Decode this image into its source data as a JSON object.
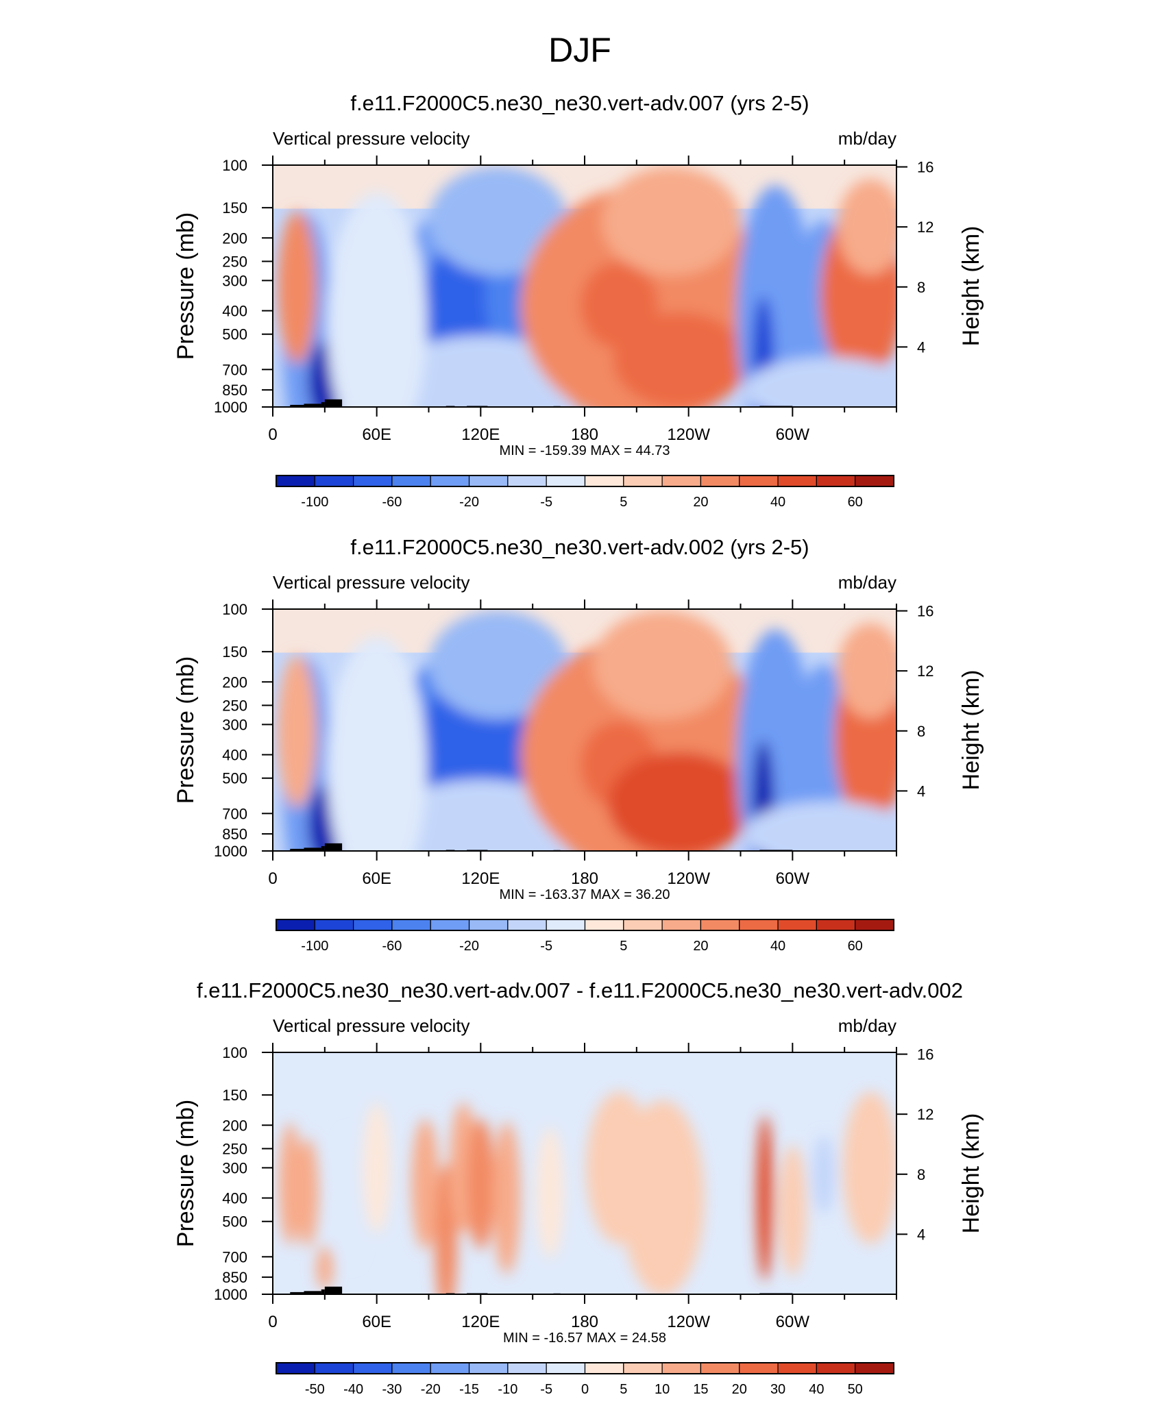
{
  "figure": {
    "title": "DJF"
  },
  "colors": {
    "blue_ramp": [
      "#03008c",
      "#0a1fb0",
      "#1c44d6",
      "#2f62e8",
      "#4c82f0",
      "#6f9cf4",
      "#98b9f6",
      "#c3d6fa",
      "#dfeafb"
    ],
    "red_ramp": [
      "#fde8da",
      "#fbcdb4",
      "#f7ab8a",
      "#f28a64",
      "#ec6a44",
      "#e04b2a",
      "#c8301c",
      "#a51a10",
      "#7a0a06"
    ],
    "terrain": "#000000",
    "frame": "#000000"
  },
  "chart_data": [
    {
      "type": "heatmap",
      "title": "f.e11.F2000C5.ne30_ne30.vert-adv.007 (yrs 2-5)",
      "left_label": "Vertical pressure velocity",
      "right_label": "mb/day",
      "ylabel": "Pressure (mb)",
      "y2label": "Height (km)",
      "xlim": [
        0,
        360
      ],
      "ylim": [
        1000,
        100
      ],
      "yscale": "log",
      "x_ticks": [
        {
          "v": 0,
          "l": "0"
        },
        {
          "v": 60,
          "l": "60E"
        },
        {
          "v": 120,
          "l": "120E"
        },
        {
          "v": 180,
          "l": "180"
        },
        {
          "v": 240,
          "l": "120W"
        },
        {
          "v": 300,
          "l": "60W"
        }
      ],
      "y_ticks": [
        {
          "v": 100,
          "l": "100"
        },
        {
          "v": 150,
          "l": "150"
        },
        {
          "v": 200,
          "l": "200"
        },
        {
          "v": 250,
          "l": "250"
        },
        {
          "v": 300,
          "l": "300"
        },
        {
          "v": 400,
          "l": "400"
        },
        {
          "v": 500,
          "l": "500"
        },
        {
          "v": 700,
          "l": "700"
        },
        {
          "v": 850,
          "l": "850"
        },
        {
          "v": 1000,
          "l": "1000"
        }
      ],
      "y2_ticks": [
        {
          "v": 16,
          "l": "16"
        },
        {
          "v": 12,
          "l": "12"
        },
        {
          "v": 8,
          "l": "8"
        },
        {
          "v": 4,
          "l": "4"
        }
      ],
      "minmax": "MIN = -159.39  MAX =  44.73",
      "colorbar": {
        "levels": [
          "-100",
          "-60",
          "-20",
          "-5",
          "5",
          "20",
          "40",
          "60"
        ],
        "level_positions": [
          1,
          3,
          5,
          7,
          9,
          11,
          13,
          15
        ],
        "n_boxes": 16
      },
      "field": [
        {
          "x": 20,
          "p": 500,
          "w": 9,
          "h": 0.55,
          "v": -45
        },
        {
          "x": 30,
          "p": 780,
          "w": 6,
          "h": 0.18,
          "v": -130
        },
        {
          "x": 14,
          "p": 320,
          "w": 7,
          "h": 0.35,
          "v": 18
        },
        {
          "x": 43,
          "p": 420,
          "w": 5,
          "h": 0.22,
          "v": 25
        },
        {
          "x": 46,
          "p": 900,
          "w": 3,
          "h": 0.07,
          "v": 44
        },
        {
          "x": 115,
          "p": 400,
          "w": 30,
          "h": 0.5,
          "v": -55
        },
        {
          "x": 100,
          "p": 380,
          "w": 8,
          "h": 0.25,
          "v": -80
        },
        {
          "x": 118,
          "p": 360,
          "w": 6,
          "h": 0.25,
          "v": -90
        },
        {
          "x": 145,
          "p": 340,
          "w": 14,
          "h": 0.35,
          "v": -75
        },
        {
          "x": 130,
          "p": 170,
          "w": 25,
          "h": 0.25,
          "v": -30
        },
        {
          "x": 120,
          "p": 800,
          "w": 35,
          "h": 0.22,
          "v": -15
        },
        {
          "x": 60,
          "p": 450,
          "w": 18,
          "h": 0.6,
          "v": -8
        },
        {
          "x": 215,
          "p": 380,
          "w": 45,
          "h": 0.55,
          "v": 18
        },
        {
          "x": 200,
          "p": 380,
          "w": 14,
          "h": 0.2,
          "v": 30
        },
        {
          "x": 235,
          "p": 640,
          "w": 24,
          "h": 0.22,
          "v": 30
        },
        {
          "x": 230,
          "p": 170,
          "w": 25,
          "h": 0.25,
          "v": 6
        },
        {
          "x": 290,
          "p": 420,
          "w": 14,
          "h": 0.6,
          "v": -40
        },
        {
          "x": 283,
          "p": 650,
          "w": 4,
          "h": 0.3,
          "v": -110
        },
        {
          "x": 318,
          "p": 350,
          "w": 10,
          "h": 0.35,
          "v": -55
        },
        {
          "x": 340,
          "p": 340,
          "w": 15,
          "h": 0.4,
          "v": 28
        },
        {
          "x": 345,
          "p": 180,
          "w": 12,
          "h": 0.22,
          "v": 8
        },
        {
          "x": 320,
          "p": 850,
          "w": 30,
          "h": 0.15,
          "v": -12
        }
      ],
      "terrain": [
        {
          "x0": 10,
          "x1": 18,
          "p": 980
        },
        {
          "x0": 18,
          "x1": 28,
          "p": 970
        },
        {
          "x0": 28,
          "x1": 30,
          "p": 955
        },
        {
          "x0": 30,
          "x1": 40,
          "p": 930
        },
        {
          "x0": 100,
          "x1": 105,
          "p": 990
        },
        {
          "x0": 112,
          "x1": 124,
          "p": 990
        },
        {
          "x0": 162,
          "x1": 166,
          "p": 992
        },
        {
          "x0": 281,
          "x1": 300,
          "p": 990
        }
      ]
    },
    {
      "type": "heatmap",
      "title": "f.e11.F2000C5.ne30_ne30.vert-adv.002 (yrs 2-5)",
      "left_label": "Vertical pressure velocity",
      "right_label": "mb/day",
      "ylabel": "Pressure (mb)",
      "y2label": "Height (km)",
      "xlim": [
        0,
        360
      ],
      "ylim": [
        1000,
        100
      ],
      "yscale": "log",
      "x_ticks": [
        {
          "v": 0,
          "l": "0"
        },
        {
          "v": 60,
          "l": "60E"
        },
        {
          "v": 120,
          "l": "120E"
        },
        {
          "v": 180,
          "l": "180"
        },
        {
          "v": 240,
          "l": "120W"
        },
        {
          "v": 300,
          "l": "60W"
        }
      ],
      "y_ticks": [
        {
          "v": 100,
          "l": "100"
        },
        {
          "v": 150,
          "l": "150"
        },
        {
          "v": 200,
          "l": "200"
        },
        {
          "v": 250,
          "l": "250"
        },
        {
          "v": 300,
          "l": "300"
        },
        {
          "v": 400,
          "l": "400"
        },
        {
          "v": 500,
          "l": "500"
        },
        {
          "v": 700,
          "l": "700"
        },
        {
          "v": 850,
          "l": "850"
        },
        {
          "v": 1000,
          "l": "1000"
        }
      ],
      "y2_ticks": [
        {
          "v": 16,
          "l": "16"
        },
        {
          "v": 12,
          "l": "12"
        },
        {
          "v": 8,
          "l": "8"
        },
        {
          "v": 4,
          "l": "4"
        }
      ],
      "minmax": "MIN = -163.37  MAX =  36.20",
      "colorbar": {
        "levels": [
          "-100",
          "-60",
          "-20",
          "-5",
          "5",
          "20",
          "40",
          "60"
        ],
        "level_positions": [
          1,
          3,
          5,
          7,
          9,
          11,
          13,
          15
        ],
        "n_boxes": 16
      },
      "field": [
        {
          "x": 20,
          "p": 500,
          "w": 9,
          "h": 0.55,
          "v": -45
        },
        {
          "x": 30,
          "p": 780,
          "w": 6,
          "h": 0.18,
          "v": -130
        },
        {
          "x": 14,
          "p": 320,
          "w": 7,
          "h": 0.35,
          "v": 10
        },
        {
          "x": 43,
          "p": 420,
          "w": 5,
          "h": 0.22,
          "v": 20
        },
        {
          "x": 46,
          "p": 900,
          "w": 3,
          "h": 0.07,
          "v": 36
        },
        {
          "x": 115,
          "p": 420,
          "w": 30,
          "h": 0.52,
          "v": -60
        },
        {
          "x": 98,
          "p": 380,
          "w": 8,
          "h": 0.25,
          "v": -85
        },
        {
          "x": 115,
          "p": 380,
          "w": 8,
          "h": 0.3,
          "v": -95
        },
        {
          "x": 140,
          "p": 400,
          "w": 14,
          "h": 0.35,
          "v": -85
        },
        {
          "x": 130,
          "p": 170,
          "w": 25,
          "h": 0.25,
          "v": -30
        },
        {
          "x": 120,
          "p": 800,
          "w": 35,
          "h": 0.22,
          "v": -18
        },
        {
          "x": 60,
          "p": 450,
          "w": 18,
          "h": 0.6,
          "v": -8
        },
        {
          "x": 215,
          "p": 400,
          "w": 45,
          "h": 0.55,
          "v": 18
        },
        {
          "x": 200,
          "p": 440,
          "w": 14,
          "h": 0.2,
          "v": 28
        },
        {
          "x": 235,
          "p": 640,
          "w": 26,
          "h": 0.24,
          "v": 32
        },
        {
          "x": 225,
          "p": 170,
          "w": 25,
          "h": 0.25,
          "v": 7
        },
        {
          "x": 290,
          "p": 420,
          "w": 14,
          "h": 0.6,
          "v": -40
        },
        {
          "x": 283,
          "p": 650,
          "w": 4,
          "h": 0.3,
          "v": -120
        },
        {
          "x": 318,
          "p": 350,
          "w": 10,
          "h": 0.35,
          "v": -50
        },
        {
          "x": 345,
          "p": 340,
          "w": 13,
          "h": 0.4,
          "v": 25
        },
        {
          "x": 345,
          "p": 180,
          "w": 12,
          "h": 0.22,
          "v": 8
        },
        {
          "x": 320,
          "p": 850,
          "w": 30,
          "h": 0.15,
          "v": -12
        }
      ],
      "terrain": [
        {
          "x0": 10,
          "x1": 18,
          "p": 980
        },
        {
          "x0": 18,
          "x1": 28,
          "p": 970
        },
        {
          "x0": 28,
          "x1": 30,
          "p": 955
        },
        {
          "x0": 30,
          "x1": 40,
          "p": 930
        },
        {
          "x0": 100,
          "x1": 105,
          "p": 990
        },
        {
          "x0": 112,
          "x1": 124,
          "p": 990
        },
        {
          "x0": 162,
          "x1": 166,
          "p": 992
        },
        {
          "x0": 281,
          "x1": 300,
          "p": 990
        }
      ]
    },
    {
      "type": "heatmap",
      "title": "f.e11.F2000C5.ne30_ne30.vert-adv.007 - f.e11.F2000C5.ne30_ne30.vert-adv.002",
      "left_label": "Vertical pressure velocity",
      "right_label": "mb/day",
      "ylabel": "Pressure (mb)",
      "y2label": "Height (km)",
      "xlim": [
        0,
        360
      ],
      "ylim": [
        1000,
        100
      ],
      "yscale": "log",
      "x_ticks": [
        {
          "v": 0,
          "l": "0"
        },
        {
          "v": 60,
          "l": "60E"
        },
        {
          "v": 120,
          "l": "120E"
        },
        {
          "v": 180,
          "l": "180"
        },
        {
          "v": 240,
          "l": "120W"
        },
        {
          "v": 300,
          "l": "60W"
        }
      ],
      "y_ticks": [
        {
          "v": 100,
          "l": "100"
        },
        {
          "v": 150,
          "l": "150"
        },
        {
          "v": 200,
          "l": "200"
        },
        {
          "v": 250,
          "l": "250"
        },
        {
          "v": 300,
          "l": "300"
        },
        {
          "v": 400,
          "l": "400"
        },
        {
          "v": 500,
          "l": "500"
        },
        {
          "v": 700,
          "l": "700"
        },
        {
          "v": 850,
          "l": "850"
        },
        {
          "v": 1000,
          "l": "1000"
        }
      ],
      "y2_ticks": [
        {
          "v": 16,
          "l": "16"
        },
        {
          "v": 12,
          "l": "12"
        },
        {
          "v": 8,
          "l": "8"
        },
        {
          "v": 4,
          "l": "4"
        }
      ],
      "minmax": "MIN = -16.57  MAX =  24.58",
      "colorbar": {
        "levels": [
          "-50",
          "-40",
          "-30",
          "-20",
          "-15",
          "-10",
          "-5",
          "0",
          "5",
          "10",
          "15",
          "20",
          "30",
          "40",
          "50"
        ],
        "level_positions": [
          1,
          2,
          3,
          4,
          5,
          6,
          7,
          8,
          9,
          10,
          11,
          12,
          13,
          14,
          15
        ],
        "n_boxes": 16
      },
      "field": [
        {
          "x": 10,
          "p": 350,
          "w": 4,
          "h": 0.28,
          "v": 7
        },
        {
          "x": 20,
          "p": 380,
          "w": 4,
          "h": 0.25,
          "v": 8
        },
        {
          "x": 30,
          "p": 780,
          "w": 3,
          "h": 0.1,
          "v": 8
        },
        {
          "x": 45,
          "p": 400,
          "w": 5,
          "h": 0.3,
          "v": -6
        },
        {
          "x": 60,
          "p": 300,
          "w": 5,
          "h": 0.3,
          "v": -4
        },
        {
          "x": 88,
          "p": 350,
          "w": 5,
          "h": 0.3,
          "v": 6
        },
        {
          "x": 100,
          "p": 600,
          "w": 4,
          "h": 0.35,
          "v": 12
        },
        {
          "x": 110,
          "p": 300,
          "w": 5,
          "h": 0.3,
          "v": 10
        },
        {
          "x": 120,
          "p": 350,
          "w": 5,
          "h": 0.3,
          "v": 12
        },
        {
          "x": 135,
          "p": 400,
          "w": 5,
          "h": 0.35,
          "v": 8
        },
        {
          "x": 160,
          "p": 380,
          "w": 5,
          "h": 0.3,
          "v": -4
        },
        {
          "x": 200,
          "p": 300,
          "w": 12,
          "h": 0.35,
          "v": 3
        },
        {
          "x": 225,
          "p": 400,
          "w": 15,
          "h": 0.45,
          "v": 3
        },
        {
          "x": 284,
          "p": 400,
          "w": 3,
          "h": 0.38,
          "v": 22
        },
        {
          "x": 300,
          "p": 450,
          "w": 5,
          "h": 0.3,
          "v": 4
        },
        {
          "x": 318,
          "p": 320,
          "w": 4,
          "h": 0.18,
          "v": -14
        },
        {
          "x": 345,
          "p": 300,
          "w": 10,
          "h": 0.35,
          "v": 4
        }
      ],
      "terrain": [
        {
          "x0": 10,
          "x1": 18,
          "p": 980
        },
        {
          "x0": 18,
          "x1": 28,
          "p": 970
        },
        {
          "x0": 28,
          "x1": 30,
          "p": 955
        },
        {
          "x0": 30,
          "x1": 40,
          "p": 930
        },
        {
          "x0": 100,
          "x1": 105,
          "p": 990
        },
        {
          "x0": 112,
          "x1": 124,
          "p": 990
        },
        {
          "x0": 162,
          "x1": 166,
          "p": 992
        },
        {
          "x0": 281,
          "x1": 300,
          "p": 990
        }
      ]
    }
  ]
}
